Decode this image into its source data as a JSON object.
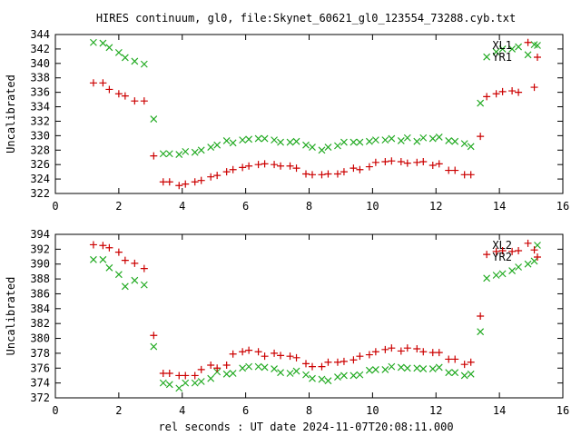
{
  "title": "HIRES continuum, gl0, file:Skynet_60621_gl0_123554_73288.cyb.txt",
  "xlabel": "rel seconds : UT date 2024-11-07T20:08:11.000",
  "colors": {
    "red": "#cc0000",
    "green": "#22aa22",
    "frame": "#000000"
  },
  "chart_data": [
    {
      "type": "scatter",
      "ylabel": "Uncalibrated",
      "xlim": [
        0,
        16
      ],
      "ylim": [
        322,
        344
      ],
      "xticks": [
        0,
        2,
        4,
        6,
        8,
        10,
        12,
        14,
        16
      ],
      "yticks": [
        322,
        324,
        326,
        328,
        330,
        332,
        334,
        336,
        338,
        340,
        342,
        344
      ],
      "legend_position": "top-right",
      "series": [
        {
          "name": "XL1",
          "marker": "x",
          "color": "#22aa22",
          "x": [
            1.2,
            1.5,
            1.7,
            2.0,
            2.2,
            2.5,
            2.8,
            3.1,
            3.4,
            3.6,
            3.9,
            4.1,
            4.4,
            4.6,
            4.9,
            5.1,
            5.4,
            5.6,
            5.9,
            6.1,
            6.4,
            6.6,
            6.9,
            7.1,
            7.4,
            7.6,
            7.9,
            8.1,
            8.4,
            8.6,
            8.9,
            9.1,
            9.4,
            9.6,
            9.9,
            10.1,
            10.4,
            10.6,
            10.9,
            11.1,
            11.4,
            11.6,
            11.9,
            12.1,
            12.4,
            12.6,
            12.9,
            13.1,
            13.4,
            13.6,
            13.9,
            14.1,
            14.4,
            14.6,
            14.9,
            15.1
          ],
          "y": [
            342.9,
            342.8,
            342.2,
            341.5,
            340.8,
            340.3,
            339.9,
            332.3,
            327.5,
            327.5,
            327.4,
            327.8,
            327.7,
            328.0,
            328.4,
            328.7,
            329.3,
            329.0,
            329.4,
            329.5,
            329.6,
            329.6,
            329.4,
            329.1,
            329.1,
            329.2,
            328.7,
            328.4,
            328.0,
            328.4,
            328.6,
            329.1,
            329.1,
            329.1,
            329.2,
            329.4,
            329.4,
            329.6,
            329.3,
            329.7,
            329.2,
            329.7,
            329.6,
            329.8,
            329.3,
            329.2,
            328.9,
            328.5,
            334.5,
            340.9,
            341.6,
            342.0,
            342.0,
            342.3,
            341.2,
            342.6
          ]
        },
        {
          "name": "YR1",
          "marker": "+",
          "color": "#cc0000",
          "x": [
            1.2,
            1.5,
            1.7,
            2.0,
            2.2,
            2.5,
            2.8,
            3.1,
            3.4,
            3.6,
            3.9,
            4.1,
            4.4,
            4.6,
            4.9,
            5.1,
            5.4,
            5.6,
            5.9,
            6.1,
            6.4,
            6.6,
            6.9,
            7.1,
            7.4,
            7.6,
            7.9,
            8.1,
            8.4,
            8.6,
            8.9,
            9.1,
            9.4,
            9.6,
            9.9,
            10.1,
            10.4,
            10.6,
            10.9,
            11.1,
            11.4,
            11.6,
            11.9,
            12.1,
            12.4,
            12.6,
            12.9,
            13.1,
            13.4,
            13.6,
            13.9,
            14.1,
            14.4,
            14.6,
            14.9,
            15.1
          ],
          "y": [
            337.3,
            337.3,
            336.4,
            335.8,
            335.5,
            334.8,
            334.8,
            327.2,
            323.6,
            323.6,
            323.1,
            323.3,
            323.6,
            323.8,
            324.3,
            324.5,
            325.0,
            325.3,
            325.6,
            325.8,
            326.0,
            326.1,
            326.0,
            325.8,
            325.8,
            325.5,
            324.7,
            324.6,
            324.6,
            324.7,
            324.7,
            325.0,
            325.5,
            325.3,
            325.7,
            326.3,
            326.4,
            326.5,
            326.4,
            326.2,
            326.3,
            326.4,
            325.9,
            326.1,
            325.2,
            325.2,
            324.6,
            324.6,
            329.9,
            335.4,
            335.8,
            336.1,
            336.2,
            336.0,
            342.9,
            336.7
          ]
        }
      ]
    },
    {
      "type": "scatter",
      "ylabel": "Uncalibrated",
      "xlim": [
        0,
        16
      ],
      "ylim": [
        372,
        394
      ],
      "xticks": [
        0,
        2,
        4,
        6,
        8,
        10,
        12,
        14,
        16
      ],
      "yticks": [
        372,
        374,
        376,
        378,
        380,
        382,
        384,
        386,
        388,
        390,
        392,
        394
      ],
      "legend_position": "top-right",
      "series": [
        {
          "name": "XL2",
          "marker": "x",
          "color": "#22aa22",
          "x": [
            1.2,
            1.5,
            1.7,
            2.0,
            2.2,
            2.5,
            2.8,
            3.1,
            3.4,
            3.6,
            3.9,
            4.1,
            4.4,
            4.6,
            4.9,
            5.1,
            5.4,
            5.6,
            5.9,
            6.1,
            6.4,
            6.6,
            6.9,
            7.1,
            7.4,
            7.6,
            7.9,
            8.1,
            8.4,
            8.6,
            8.9,
            9.1,
            9.4,
            9.6,
            9.9,
            10.1,
            10.4,
            10.6,
            10.9,
            11.1,
            11.4,
            11.6,
            11.9,
            12.1,
            12.4,
            12.6,
            12.9,
            13.1,
            13.4,
            13.6,
            13.9,
            14.1,
            14.4,
            14.6,
            14.9,
            15.1
          ],
          "y": [
            390.6,
            390.6,
            389.5,
            388.6,
            387.0,
            387.8,
            387.2,
            378.9,
            374.0,
            373.8,
            373.3,
            374.0,
            374.0,
            374.2,
            374.6,
            375.5,
            375.2,
            375.3,
            376.0,
            376.2,
            376.2,
            376.1,
            375.9,
            375.4,
            375.3,
            375.6,
            375.1,
            374.6,
            374.5,
            374.3,
            374.8,
            375.0,
            375.0,
            375.1,
            375.7,
            375.8,
            375.8,
            376.2,
            376.1,
            376.0,
            376.0,
            375.9,
            375.9,
            376.1,
            375.4,
            375.4,
            375.0,
            375.2,
            380.9,
            388.1,
            388.5,
            388.7,
            389.1,
            389.6,
            390.0,
            390.4
          ]
        },
        {
          "name": "YR2",
          "marker": "+",
          "color": "#cc0000",
          "x": [
            1.2,
            1.5,
            1.7,
            2.0,
            2.2,
            2.5,
            2.8,
            3.1,
            3.4,
            3.6,
            3.9,
            4.1,
            4.4,
            4.6,
            4.9,
            5.1,
            5.4,
            5.6,
            5.9,
            6.1,
            6.4,
            6.6,
            6.9,
            7.1,
            7.4,
            7.6,
            7.9,
            8.1,
            8.4,
            8.6,
            8.9,
            9.1,
            9.4,
            9.6,
            9.9,
            10.1,
            10.4,
            10.6,
            10.9,
            11.1,
            11.4,
            11.6,
            11.9,
            12.1,
            12.4,
            12.6,
            12.9,
            13.1,
            13.4,
            13.6,
            13.9,
            14.1,
            14.4,
            14.6,
            14.9,
            15.1
          ],
          "y": [
            392.6,
            392.5,
            392.2,
            391.6,
            390.5,
            390.1,
            389.4,
            380.4,
            375.3,
            375.3,
            375.0,
            375.0,
            375.0,
            375.8,
            376.4,
            376.0,
            376.4,
            377.9,
            378.2,
            378.4,
            378.2,
            377.6,
            378.0,
            377.7,
            377.6,
            377.4,
            376.6,
            376.2,
            376.2,
            376.8,
            376.8,
            376.9,
            377.1,
            377.6,
            377.8,
            378.2,
            378.5,
            378.7,
            378.3,
            378.7,
            378.6,
            378.2,
            378.1,
            378.1,
            377.2,
            377.2,
            376.5,
            376.8,
            383.0,
            391.3,
            391.7,
            391.8,
            391.7,
            391.8,
            392.8,
            391.9
          ]
        }
      ]
    }
  ]
}
